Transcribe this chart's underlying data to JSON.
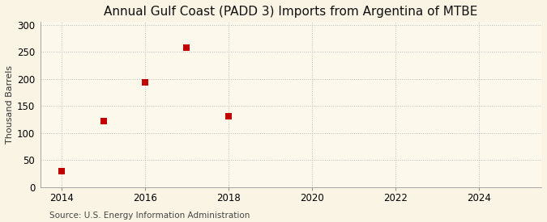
{
  "title": "Annual Gulf Coast (PADD 3) Imports from Argentina of MTBE",
  "ylabel": "Thousand Barrels",
  "source": "Source: U.S. Energy Information Administration",
  "x_data": [
    2014,
    2015,
    2016,
    2017,
    2018
  ],
  "y_data": [
    30,
    122,
    193,
    258,
    131
  ],
  "marker": "s",
  "marker_color": "#c00000",
  "marker_size": 36,
  "xlim": [
    2013.5,
    2025.5
  ],
  "ylim": [
    0,
    305
  ],
  "xticks": [
    2014,
    2016,
    2018,
    2020,
    2022,
    2024
  ],
  "yticks": [
    0,
    50,
    100,
    150,
    200,
    250,
    300
  ],
  "background_color": "#faf4e4",
  "plot_bg_color": "#fdf8ec",
  "grid_color": "#bbbbbb",
  "spine_color": "#999999",
  "title_fontsize": 11,
  "label_fontsize": 8,
  "tick_fontsize": 8.5,
  "source_fontsize": 7.5
}
